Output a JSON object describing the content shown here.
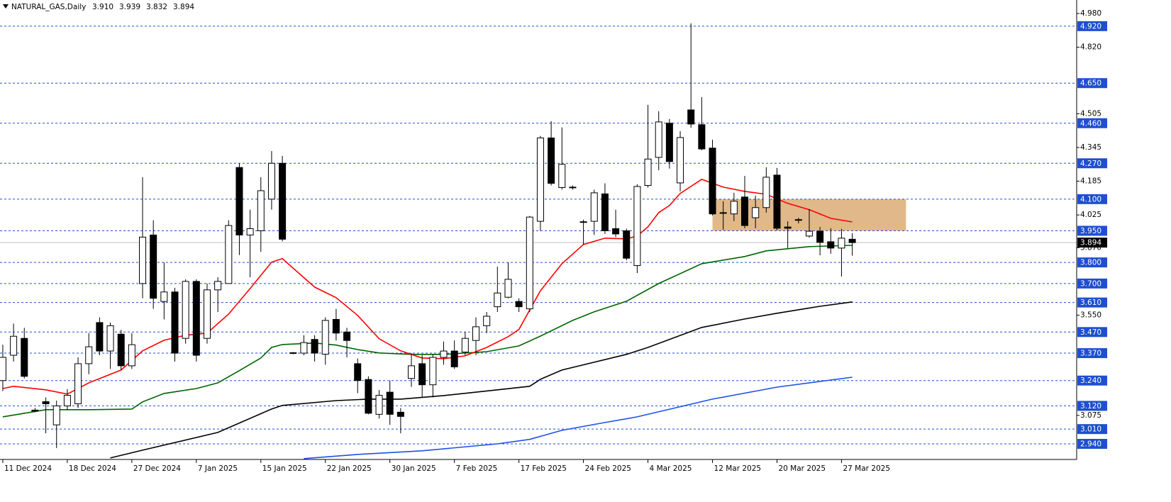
{
  "chart_data": {
    "type": "candlestick",
    "title": "NATURAL_GAS,Daily",
    "header_values": [
      {
        "value": 3.91,
        "label": "3.910"
      },
      {
        "value": 3.939,
        "label": "3.939"
      },
      {
        "value": 3.832,
        "label": "3.832"
      },
      {
        "value": 3.894,
        "label": "3.894"
      }
    ],
    "xlim": [
      -0.26,
      99.87
    ],
    "xticks": [
      {
        "value": 0,
        "label": "11 Dec 2024"
      },
      {
        "value": 6,
        "label": "18 Dec 2024"
      },
      {
        "value": 12,
        "label": "27 Dec 2024"
      },
      {
        "value": 18,
        "label": "7 Jan 2025"
      },
      {
        "value": 24,
        "label": "15 Jan 2025"
      },
      {
        "value": 30,
        "label": "22 Jan 2025"
      },
      {
        "value": 36,
        "label": "30 Jan 2025"
      },
      {
        "value": 42,
        "label": "7 Feb 2025"
      },
      {
        "value": 48,
        "label": "17 Feb 2025"
      },
      {
        "value": 54,
        "label": "24 Feb 2025"
      },
      {
        "value": 60,
        "label": "4 Mar 2025"
      },
      {
        "value": 66,
        "label": "12 Mar 2025"
      },
      {
        "value": 72,
        "label": "20 Mar 2025"
      },
      {
        "value": 78,
        "label": "27 Mar 2025"
      }
    ],
    "ylim": [
      2.866,
      5.044
    ],
    "yticks": [
      {
        "value": 4.98,
        "label": "4.980"
      },
      {
        "value": 4.82,
        "label": "4.820"
      },
      4.505,
      4.345,
      4.185,
      4.025,
      {
        "value": 3.87,
        "label": "3.870"
      },
      {
        "value": 3.55,
        "label": "3.550"
      },
      3.075
    ],
    "up_color": "#ffffff",
    "down_color": "#000000",
    "open": [
      3.24,
      3.36,
      3.44,
      3.1,
      3.14,
      3.03,
      3.12,
      3.13,
      3.32,
      3.515,
      3.38,
      3.46,
      3.31,
      3.7,
      3.93,
      3.615,
      3.66,
      3.44,
      3.71,
      3.44,
      3.67,
      3.7,
      4.25,
      3.93,
      3.95,
      4.1,
      4.27,
      3.37,
      3.37,
      3.435,
      3.365,
      3.53,
      3.47,
      3.32,
      3.245,
      3.08,
      3.185,
      3.09,
      3.25,
      3.32,
      3.22,
      3.35,
      3.38,
      3.375,
      3.43,
      3.5,
      3.59,
      3.635,
      3.615,
      3.58,
      3.995,
      4.39,
      4.155,
      4.157,
      3.993,
      3.995,
      4.125,
      3.96,
      3.95,
      3.785,
      4.165,
      4.298,
      4.46,
      4.177,
      4.523,
      4.453,
      4.342,
      4.036,
      4.03,
      4.11,
      4.012,
      4.06,
      4.214,
      3.968,
      4.003,
      3.925,
      3.948,
      3.898,
      3.868,
      3.91
    ],
    "high": [
      3.41,
      3.51,
      3.49,
      3.11,
      3.16,
      3.145,
      3.2,
      3.35,
      3.465,
      3.54,
      3.515,
      3.48,
      3.465,
      4.204,
      4.0,
      3.8,
      3.68,
      3.72,
      3.72,
      3.7,
      3.73,
      4.0,
      4.27,
      4.05,
      4.204,
      4.328,
      4.305,
      3.375,
      3.455,
      3.455,
      3.54,
      3.58,
      3.49,
      3.345,
      3.26,
      3.195,
      3.24,
      3.11,
      3.37,
      3.36,
      3.365,
      3.425,
      3.43,
      3.47,
      3.54,
      3.565,
      3.78,
      3.8,
      3.63,
      4.02,
      4.4,
      4.47,
      4.44,
      4.165,
      4.003,
      4.145,
      4.175,
      4.05,
      3.96,
      4.17,
      4.547,
      4.517,
      4.48,
      4.422,
      4.933,
      4.584,
      4.382,
      4.09,
      4.13,
      4.21,
      4.117,
      4.251,
      4.248,
      3.995,
      4.012,
      4.053,
      3.968,
      3.962,
      3.959,
      3.939
    ],
    "low": [
      3.19,
      3.33,
      3.25,
      3.09,
      2.99,
      2.92,
      3.1,
      3.11,
      3.27,
      3.36,
      3.295,
      3.29,
      3.295,
      3.63,
      3.58,
      3.53,
      3.33,
      3.415,
      3.33,
      3.415,
      3.565,
      3.7,
      3.835,
      3.73,
      3.85,
      4.05,
      3.9,
      3.365,
      3.36,
      3.33,
      3.315,
      3.43,
      3.35,
      3.18,
      3.08,
      3.06,
      3.03,
      2.99,
      3.21,
      3.16,
      3.16,
      3.315,
      3.295,
      3.36,
      3.36,
      3.465,
      3.565,
      3.63,
      3.565,
      3.565,
      3.95,
      4.165,
      4.145,
      4.145,
      3.885,
      3.93,
      3.935,
      3.92,
      3.81,
      3.75,
      4.155,
      4.237,
      4.245,
      4.137,
      4.439,
      4.332,
      4.023,
      3.955,
      3.996,
      3.962,
      3.962,
      4.036,
      3.952,
      3.868,
      3.985,
      3.918,
      3.834,
      3.841,
      3.733,
      3.832
    ],
    "close": [
      3.35,
      3.45,
      3.26,
      3.095,
      3.13,
      3.12,
      3.17,
      3.32,
      3.4,
      3.38,
      3.5,
      3.31,
      3.41,
      3.92,
      3.63,
      3.66,
      3.37,
      3.71,
      3.36,
      3.67,
      3.71,
      3.975,
      3.93,
      3.96,
      4.14,
      4.27,
      3.91,
      3.372,
      3.42,
      3.37,
      3.525,
      3.465,
      3.43,
      3.24,
      3.085,
      3.17,
      3.08,
      3.07,
      3.31,
      3.22,
      3.35,
      3.38,
      3.305,
      3.44,
      3.495,
      3.545,
      3.655,
      3.72,
      3.59,
      4.015,
      4.39,
      4.175,
      4.265,
      4.156,
      3.99,
      4.13,
      3.95,
      3.935,
      3.82,
      4.16,
      4.29,
      4.466,
      4.278,
      4.392,
      4.456,
      4.338,
      4.03,
      4.035,
      4.09,
      3.975,
      4.06,
      4.204,
      3.962,
      3.962,
      4.002,
      3.948,
      3.895,
      3.868,
      3.915,
      3.894
    ],
    "lines": [
      {
        "color": "#1e50e6",
        "x": [
          28,
          33,
          39,
          46,
          49,
          52,
          56,
          59,
          66,
          72,
          79
        ],
        "values": [
          2.87,
          2.89,
          2.907,
          2.94,
          2.961,
          3.004,
          3.041,
          3.068,
          3.152,
          3.209,
          3.256
        ]
      },
      {
        "color": "#000000",
        "x": [
          10,
          13,
          20,
          25,
          26,
          31,
          34,
          37,
          41,
          46,
          49,
          50,
          52,
          58,
          60,
          65,
          69,
          72,
          76,
          79
        ],
        "values": [
          2.873,
          2.91,
          2.994,
          3.105,
          3.122,
          3.145,
          3.152,
          3.152,
          3.169,
          3.196,
          3.213,
          3.246,
          3.29,
          3.364,
          3.397,
          3.492,
          3.532,
          3.559,
          3.592,
          3.613
        ]
      },
      {
        "color": "#006400",
        "x": [
          0,
          4,
          8,
          12,
          13,
          15,
          18,
          20,
          22,
          24,
          25,
          26,
          29,
          31,
          33,
          35,
          38,
          41,
          45,
          48,
          50,
          53,
          55,
          58,
          61,
          65,
          69,
          71,
          75,
          79
        ],
        "values": [
          3.068,
          3.102,
          3.102,
          3.105,
          3.139,
          3.179,
          3.202,
          3.229,
          3.287,
          3.347,
          3.397,
          3.411,
          3.418,
          3.408,
          3.387,
          3.371,
          3.364,
          3.364,
          3.377,
          3.404,
          3.451,
          3.525,
          3.566,
          3.616,
          3.7,
          3.794,
          3.828,
          3.855,
          3.875,
          3.881
        ]
      },
      {
        "color": "#ff0000",
        "x": [
          0,
          1,
          4,
          6,
          8,
          11,
          13,
          15,
          17,
          19,
          21,
          23,
          25,
          26,
          29,
          31,
          33,
          35,
          37,
          39,
          41,
          43,
          45,
          47,
          48,
          50,
          52,
          54,
          56,
          58,
          59,
          60,
          61,
          62,
          63,
          65,
          67,
          69,
          71,
          73,
          75,
          77,
          79
        ],
        "values": [
          3.202,
          3.213,
          3.196,
          3.176,
          3.229,
          3.29,
          3.381,
          3.431,
          3.455,
          3.465,
          3.555,
          3.676,
          3.801,
          3.818,
          3.683,
          3.633,
          3.549,
          3.438,
          3.381,
          3.347,
          3.344,
          3.357,
          3.397,
          3.448,
          3.482,
          3.666,
          3.794,
          3.885,
          3.915,
          3.912,
          3.925,
          3.969,
          4.036,
          4.07,
          4.127,
          4.194,
          4.157,
          4.137,
          4.123,
          4.08,
          4.05,
          4.009,
          3.992
        ]
      }
    ],
    "zone": {
      "x": [
        66,
        84
      ],
      "y": [
        3.95,
        4.1
      ],
      "color": "#e0b88a"
    },
    "level_color": "#1f4fd0",
    "levels": [
      {
        "value": 4.92,
        "label": "4.920"
      },
      {
        "value": 4.65,
        "label": "4.650"
      },
      {
        "value": 4.46,
        "label": "4.460"
      },
      {
        "value": 4.27,
        "label": "4.270"
      },
      {
        "value": 4.1,
        "label": "4.100"
      },
      {
        "value": 3.95,
        "label": "3.950"
      },
      {
        "value": 3.8,
        "label": "3.800"
      },
      {
        "value": 3.7,
        "label": "3.700"
      },
      {
        "value": 3.61,
        "label": "3.610"
      },
      {
        "value": 3.47,
        "label": "3.470"
      },
      {
        "value": 3.37,
        "label": "3.370"
      },
      {
        "value": 3.24,
        "label": "3.240"
      },
      {
        "value": 3.12,
        "label": "3.120"
      },
      {
        "value": 3.01,
        "label": "3.010"
      },
      {
        "value": 2.94,
        "label": "2.940"
      }
    ],
    "price_line": {
      "value": 3.894,
      "label": "3.894"
    }
  }
}
